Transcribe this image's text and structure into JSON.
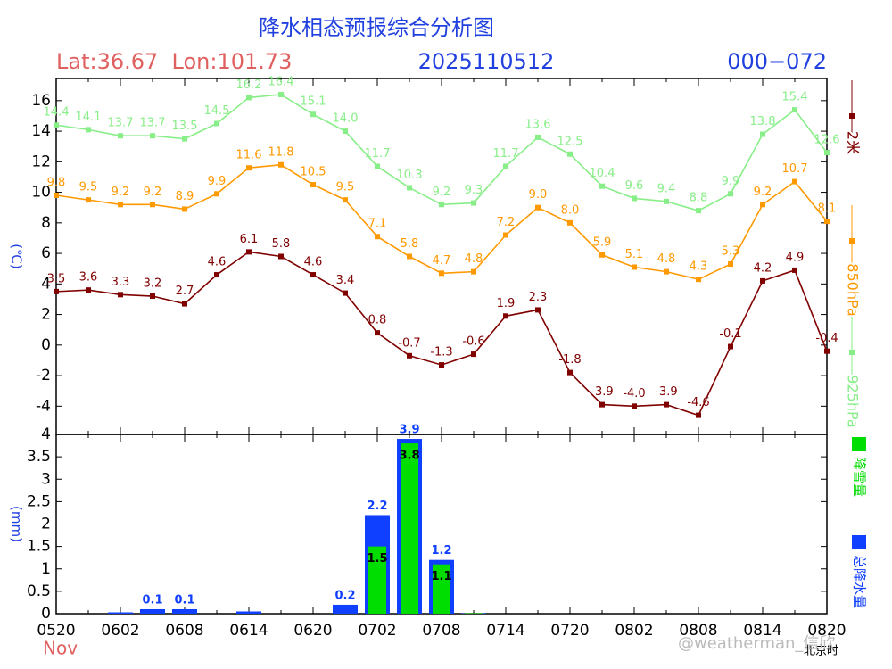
{
  "title": "降水相态预报综合分析图",
  "location": "Lat:36.67  Lon:101.73",
  "run": "2025110512",
  "range": "000−072",
  "month": "Nov",
  "time_zone": "北京时",
  "watermark": "@weatherman_信欣",
  "chart_data": [
    {
      "type": "line",
      "ylabel": "(℃)",
      "categories": [
        "0520",
        null,
        "0602",
        null,
        "0608",
        null,
        "0614",
        null,
        "0620",
        null,
        "0702",
        null,
        "0708",
        null,
        "0714",
        null,
        "0720",
        null,
        "0802",
        null,
        "0808",
        null,
        "0814",
        null,
        "0820"
      ],
      "ylim": [
        -5.85,
        17.45
      ],
      "yticks": [
        -4,
        -2,
        0,
        2,
        4,
        6,
        8,
        10,
        12,
        14,
        16
      ],
      "series": [
        {
          "name": "2米",
          "color": "#800000",
          "values": [
            3.5,
            3.6,
            3.3,
            3.2,
            2.7,
            4.6,
            6.1,
            5.8,
            4.6,
            3.4,
            0.8,
            -0.7,
            -1.3,
            -0.6,
            1.9,
            2.3,
            -1.8,
            -3.9,
            -4.0,
            -3.9,
            -4.6,
            -0.1,
            4.2,
            4.9,
            -0.4
          ],
          "value_labels": [
            "3.5",
            "3.6",
            "3.3",
            "3.2",
            "2.7",
            "4.6",
            "6.1",
            "5.8",
            "4.6",
            "3.4",
            "0.8",
            "-0.7",
            "-1.3",
            "-0.6",
            "1.9",
            "2.3",
            "-1.8",
            "-3.9",
            "-4.0",
            "-3.9",
            "-4.6",
            "-0.1",
            "4.2",
            "4.9",
            "-0.4"
          ]
        },
        {
          "name": "850hPa",
          "color": "#ff9900",
          "values": [
            9.8,
            9.5,
            9.2,
            9.2,
            8.9,
            9.9,
            11.6,
            11.8,
            10.5,
            9.5,
            7.1,
            5.8,
            4.7,
            4.8,
            7.2,
            9.0,
            8.0,
            5.9,
            5.1,
            4.8,
            4.3,
            5.3,
            9.2,
            10.7,
            8.1
          ],
          "value_labels": [
            "9.8",
            "9.5",
            "9.2",
            "9.2",
            "8.9",
            "9.9",
            "11.6",
            "11.8",
            "10.5",
            "9.5",
            "7.1",
            "5.8",
            "4.7",
            "4.8",
            "7.2",
            "9.0",
            "8.0",
            "5.9",
            "5.1",
            "4.8",
            "4.3",
            "5.3",
            "9.2",
            "10.7",
            "8.1"
          ]
        },
        {
          "name": "925hPa",
          "color": "#88ee88",
          "values": [
            14.4,
            14.1,
            13.7,
            13.7,
            13.5,
            14.5,
            16.2,
            16.4,
            15.1,
            14.0,
            11.7,
            10.3,
            9.2,
            9.3,
            11.7,
            13.6,
            12.5,
            10.4,
            9.6,
            9.4,
            8.8,
            9.9,
            13.8,
            15.4,
            12.6
          ],
          "value_labels": [
            "14.4",
            "14.1",
            "13.7",
            "13.7",
            "13.5",
            "14.5",
            "16.2",
            "16.4",
            "15.1",
            "14.0",
            "11.7",
            "10.3",
            "9.2",
            "9.3",
            "11.7",
            "13.6",
            "12.5",
            "10.4",
            "9.6",
            "9.4",
            "8.8",
            "9.9",
            "13.8",
            "15.4",
            "12.6"
          ]
        }
      ]
    },
    {
      "type": "bar",
      "ylabel": "(mm)",
      "categories": [
        "0520",
        null,
        "0602",
        null,
        "0608",
        null,
        "0614",
        null,
        "0620",
        null,
        "0702",
        null,
        "0708",
        null,
        "0714",
        null,
        "0720",
        null,
        "0802",
        null,
        "0808",
        null,
        "0814",
        null,
        "0820"
      ],
      "ylim": [
        0,
        4
      ],
      "yticks": [
        0,
        0.5,
        1,
        1.5,
        2,
        2.5,
        3,
        3.5,
        4
      ],
      "series": [
        {
          "name": "总降水量",
          "color": "#1040ff",
          "values": [
            0,
            0,
            0.03,
            0.1,
            0.1,
            0,
            0.05,
            0,
            0,
            0.2,
            2.2,
            3.9,
            1.2,
            0.01,
            0,
            0,
            0,
            0,
            0,
            0,
            0,
            0,
            0,
            0,
            0
          ],
          "value_labels": [
            null,
            null,
            null,
            "0.1",
            "0.1",
            null,
            null,
            null,
            null,
            "0.2",
            "2.2",
            "3.9",
            "1.2",
            null,
            null,
            null,
            null,
            null,
            null,
            null,
            null,
            null,
            null,
            null,
            null
          ]
        },
        {
          "name": "降雪量",
          "color": "#00dd00",
          "values": [
            0,
            0,
            0,
            0,
            0,
            0,
            0,
            0,
            0,
            0,
            1.5,
            3.8,
            1.1,
            0.01,
            0,
            0,
            0,
            0,
            0,
            0,
            0,
            0,
            0,
            0,
            0
          ],
          "value_labels": [
            null,
            null,
            null,
            null,
            null,
            null,
            null,
            null,
            null,
            null,
            "1.5",
            "3.8",
            "1.1",
            null,
            null,
            null,
            null,
            null,
            null,
            null,
            null,
            null,
            null,
            null,
            null
          ]
        }
      ]
    }
  ]
}
